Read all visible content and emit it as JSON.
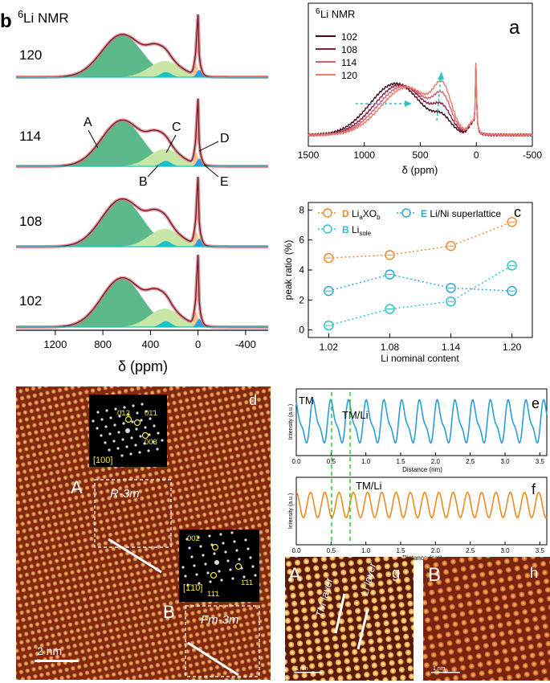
{
  "panel_b": {
    "label": "b",
    "title": "Li NMR",
    "title_sup": "6",
    "spectra": [
      {
        "label": "120"
      },
      {
        "label": "114"
      },
      {
        "label": "108"
      },
      {
        "label": "102"
      }
    ],
    "peak_labels": {
      "A": "A",
      "B": "B",
      "C": "C",
      "D": "D",
      "E": "E"
    },
    "x_ticks": [
      "1200",
      "800",
      "400",
      "0",
      "-400"
    ],
    "x_label": "δ (ppm)"
  },
  "panel_a": {
    "label": "a",
    "legend_title": "Li NMR",
    "legend_title_sup": "6",
    "legend": [
      {
        "name": "102",
        "color": "#3a0a1e"
      },
      {
        "name": "108",
        "color": "#8a1f45"
      },
      {
        "name": "114",
        "color": "#d4607a"
      },
      {
        "name": "120",
        "color": "#ee7a6a"
      }
    ],
    "x_ticks": [
      "1500",
      "1000",
      "500",
      "0",
      "-500"
    ],
    "x_label": "δ (ppm)"
  },
  "chart_data": {
    "type": "scatter",
    "panel": "c",
    "title": "",
    "xlabel": "Li nominal content",
    "ylabel": "peak ratio (%)",
    "x": [
      1.02,
      1.08,
      1.14,
      1.2
    ],
    "x_tick_labels": [
      "1.02",
      "1.08",
      "1.14",
      "1.20"
    ],
    "y_tick_labels": [
      "0",
      "2",
      "4",
      "6",
      "8"
    ],
    "xlim": [
      1.0,
      1.22
    ],
    "ylim": [
      -0.5,
      8.5
    ],
    "series": [
      {
        "key": "D",
        "name_prefix": "Li",
        "name_sub1": "a",
        "name_mid": "XO",
        "name_sub2": "b",
        "color": "#f08a2a",
        "values": [
          4.8,
          5.0,
          5.6,
          7.2
        ]
      },
      {
        "key": "E",
        "name": "Li/Ni superlattice",
        "color": "#29a9d8",
        "values": [
          2.6,
          3.7,
          2.8,
          2.6
        ]
      },
      {
        "key": "B",
        "name_prefix": "Li",
        "name_sub1": "sole",
        "color": "#2ec4c4",
        "values": [
          0.3,
          1.4,
          1.9,
          4.3
        ]
      }
    ]
  },
  "panel_d": {
    "label": "d",
    "region_a": "A",
    "region_b": "B",
    "phase_a": "R-3m",
    "phase_b": "Fm-3m",
    "scale_bar": "2 nm",
    "fft_a": {
      "zone": "[100]",
      "spots": [
        "0̄12",
        "01̄1",
        "003"
      ]
    },
    "fft_b": {
      "zone": "[1̄1̄0]",
      "spots": [
        "002",
        "11̄1",
        "1̄11"
      ]
    }
  },
  "panel_e": {
    "label": "e",
    "annotations": [
      "TM",
      "TM/Li"
    ],
    "y_label": "Intensity (a.u.)",
    "x_label": "Distance (nm)",
    "x_ticks": [
      "0.0",
      "0.5",
      "1.0",
      "1.5",
      "2.0",
      "2.5",
      "3.0",
      "3.5"
    ]
  },
  "panel_f": {
    "label": "f",
    "annotations": [
      "TM/Li"
    ],
    "y_label": "Intensity (a.u.)",
    "x_label": "Distance (nm)",
    "x_ticks": [
      "0.0",
      "0.5",
      "1.0",
      "1.5",
      "2.0",
      "2.5",
      "3.0",
      "3.5"
    ]
  },
  "panel_g": {
    "label": "g",
    "region": "A",
    "layer1": "TM layer",
    "layer2": "Li layer",
    "scale_bar": "1 nm"
  },
  "panel_h": {
    "label": "h",
    "region": "B",
    "scale_bar": "1 nm"
  }
}
